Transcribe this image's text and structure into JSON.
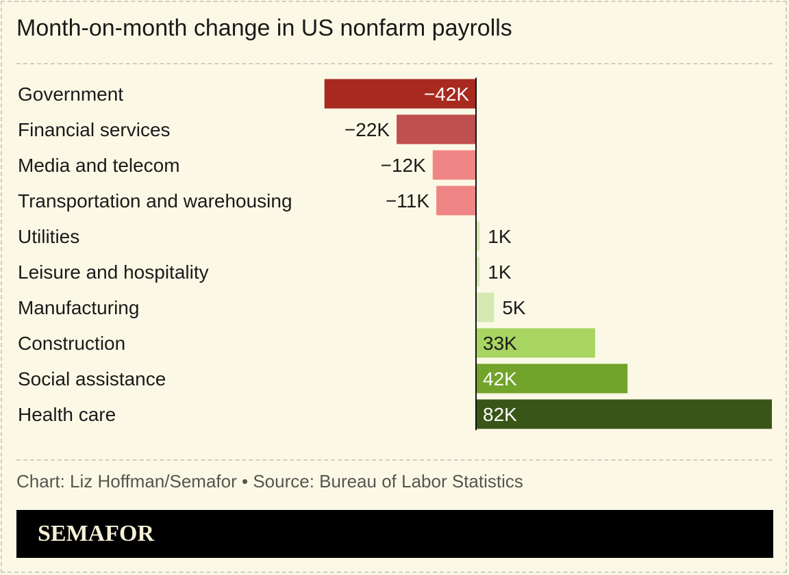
{
  "chart_data": {
    "type": "bar",
    "orientation": "horizontal",
    "title": "Month-on-month change in US nonfarm payrolls",
    "categories": [
      "Government",
      "Financial services",
      "Media and telecom",
      "Transportation and warehousing",
      "Utilities",
      "Leisure and hospitality",
      "Manufacturing",
      "Construction",
      "Social assistance",
      "Health care"
    ],
    "values": [
      -42,
      -22,
      -12,
      -11,
      1,
      1,
      5,
      33,
      42,
      82
    ],
    "labels": [
      "−42K",
      "−22K",
      "−12K",
      "−11K",
      "1K",
      "1K",
      "5K",
      "33K",
      "42K",
      "82K"
    ],
    "unit": "thousands of jobs",
    "colors": [
      "#a8291e",
      "#c04f4f",
      "#f08585",
      "#f08585",
      "#d4e8b0",
      "#d4e8b0",
      "#d4e8b0",
      "#a8d462",
      "#72a32a",
      "#3a5518"
    ],
    "label_colors": [
      "#ffffff",
      "#ffffff",
      "#1a1a1a",
      "#1a1a1a",
      "#1a1a1a",
      "#1a1a1a",
      "#1a1a1a",
      "#1a1a1a",
      "#ffffff",
      "#ffffff"
    ],
    "xlim": [
      -42,
      82
    ],
    "grid": false
  },
  "footer": {
    "credit": "Chart: Liz Hoffman/Semafor • Source: Bureau of Labor Statistics"
  },
  "brand": {
    "name": "SEMAFOR"
  }
}
